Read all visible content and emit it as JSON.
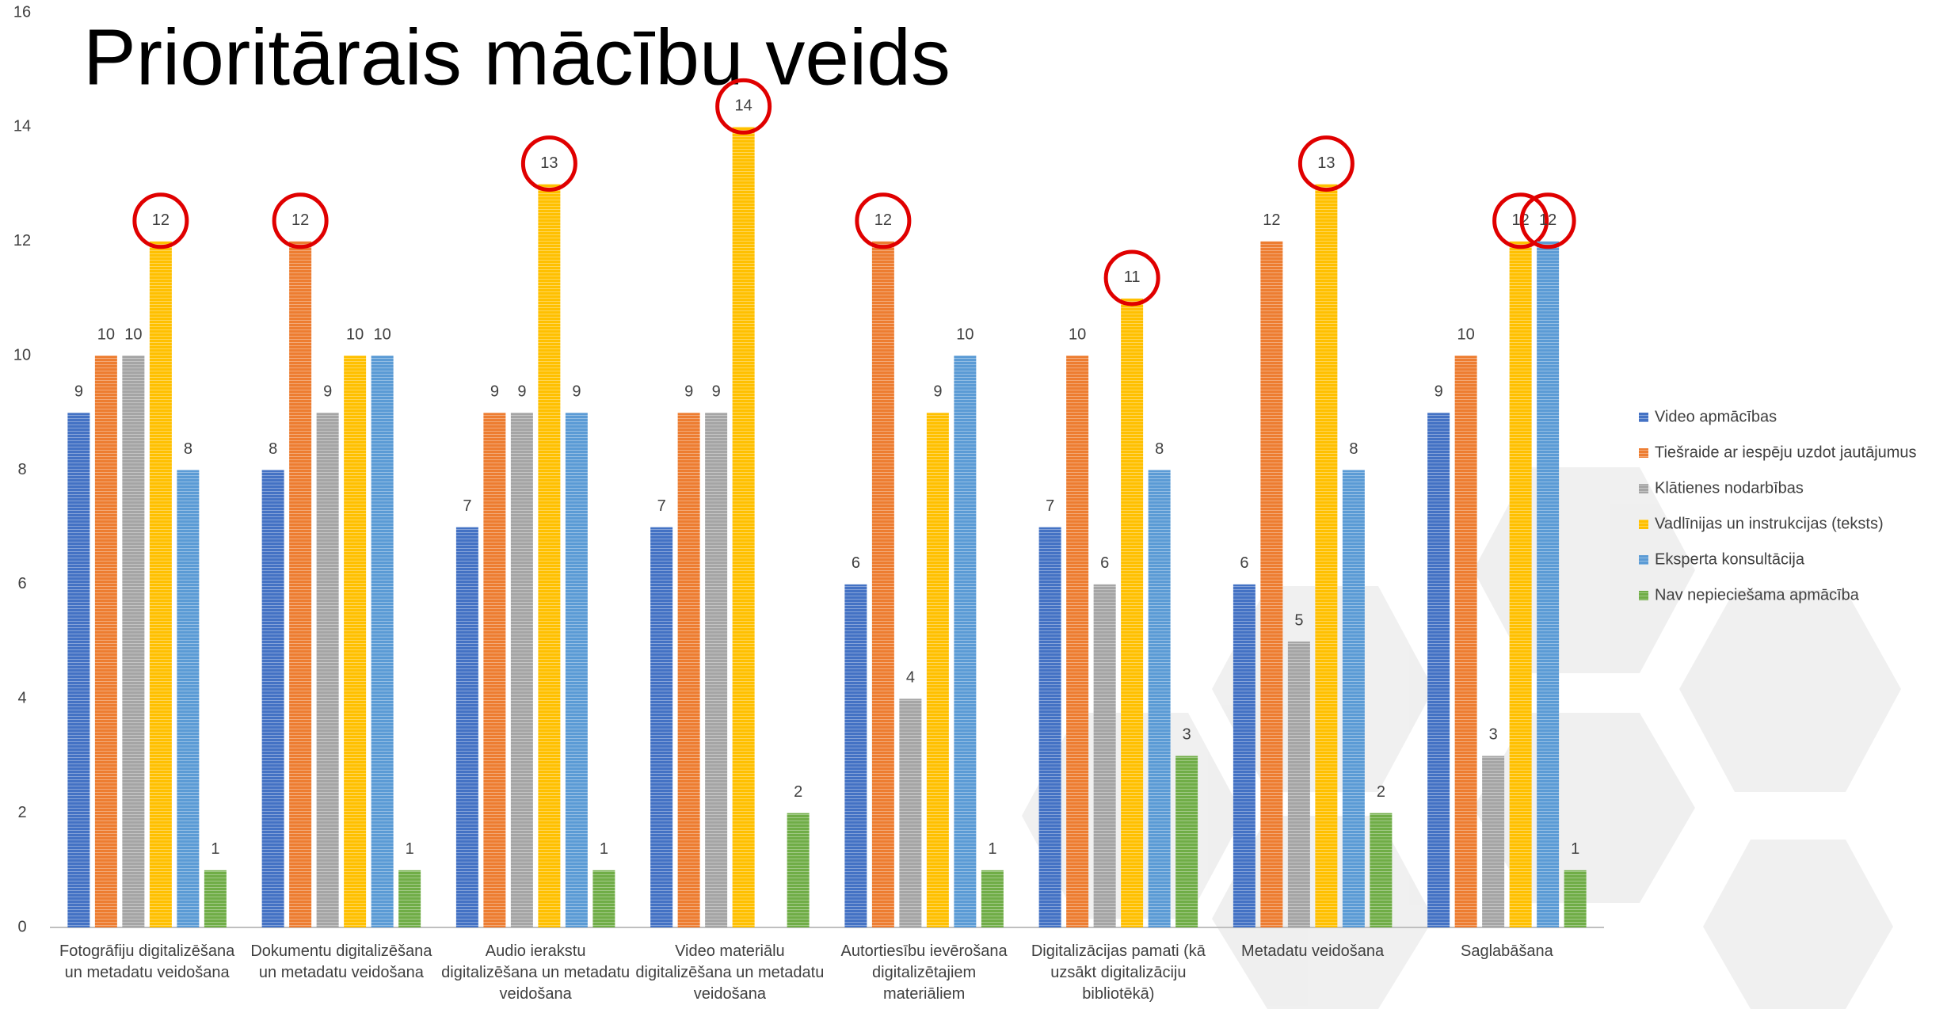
{
  "chart_data": {
    "type": "bar",
    "title": "Prioritārais mācību veids",
    "categories": [
      "Fotogrāfiju digitalizēšana un metadatu veidošana",
      "Dokumentu digitalizēšana un metadatu veidošana",
      "Audio ierakstu digitalizēšana un metadatu veidošana",
      "Video materiālu digitalizēšana un metadatu veidošana",
      "Autortiesību ievērošana digitalizētajiem materiāliem",
      "Digitalizācijas pamati (kā uzsākt digitalizāciju bibliotēkā)",
      "Metadatu veidošana",
      "Saglabāšana"
    ],
    "series": [
      {
        "name": "Video apmācības",
        "color": "#4472c4",
        "values": [
          9,
          8,
          7,
          7,
          6,
          7,
          6,
          9
        ]
      },
      {
        "name": "Tiešraide ar iespēju uzdot jautājumus",
        "color": "#ed7d31",
        "values": [
          10,
          12,
          9,
          9,
          12,
          10,
          12,
          10
        ]
      },
      {
        "name": "Klātienes nodarbības",
        "color": "#a5a5a5",
        "values": [
          10,
          9,
          9,
          9,
          4,
          6,
          5,
          3
        ]
      },
      {
        "name": "Vadlīnijas un instrukcijas (teksts)",
        "color": "#ffc000",
        "values": [
          12,
          10,
          13,
          14,
          9,
          11,
          13,
          12
        ]
      },
      {
        "name": "Eksperta konsultācija",
        "color": "#5b9bd5",
        "values": [
          8,
          10,
          9,
          null,
          10,
          8,
          8,
          12
        ]
      },
      {
        "name": "Nav nepieciešama apmācība",
        "color": "#70ad47",
        "values": [
          1,
          1,
          1,
          2,
          1,
          3,
          2,
          1
        ]
      }
    ],
    "ylim": [
      0,
      16
    ],
    "yticks": [
      0,
      2,
      4,
      6,
      8,
      10,
      12,
      14,
      16
    ],
    "grid": false,
    "legend": "right",
    "data_labels": true,
    "highlight_max": true
  }
}
